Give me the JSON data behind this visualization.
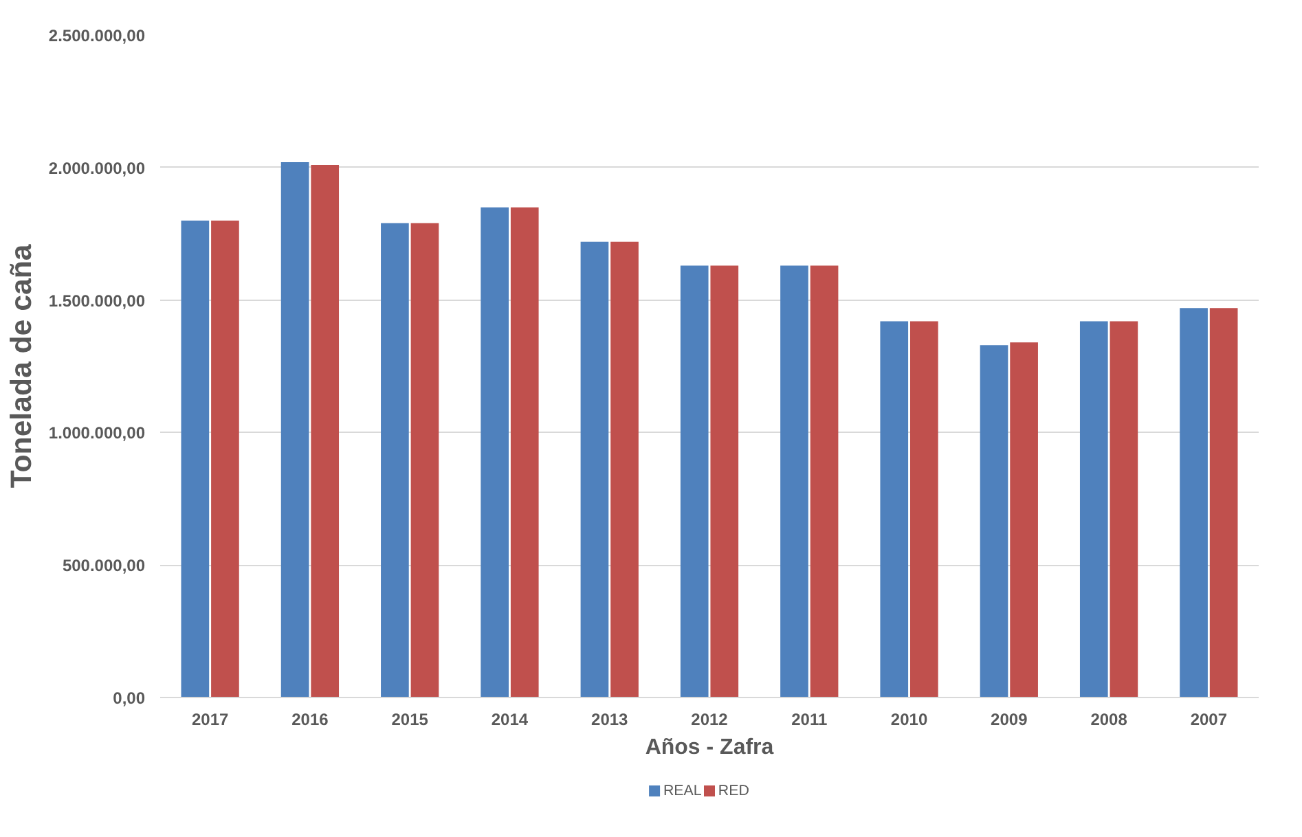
{
  "chart_data": {
    "type": "bar",
    "xlabel": "Años - Zafra",
    "ylabel": "Tonelada de caña",
    "categories": [
      "2017",
      "2016",
      "2015",
      "2014",
      "2013",
      "2012",
      "2011",
      "2010",
      "2009",
      "2008",
      "2007"
    ],
    "series": [
      {
        "name": "REAL",
        "color": "#4f81bd",
        "values": [
          1800000,
          2020000,
          1790000,
          1850000,
          1720000,
          1630000,
          1630000,
          1420000,
          1330000,
          1420000,
          1470000
        ]
      },
      {
        "name": "RED",
        "color": "#c0504d",
        "values": [
          1800000,
          2010000,
          1790000,
          1850000,
          1720000,
          1630000,
          1630000,
          1420000,
          1340000,
          1420000,
          1470000
        ]
      }
    ],
    "ylim": [
      0,
      2500000
    ],
    "yticks": [
      {
        "value": 0,
        "label": "0,00"
      },
      {
        "value": 500000,
        "label": "500.000,00"
      },
      {
        "value": 1000000,
        "label": "1.000.000,00"
      },
      {
        "value": 1500000,
        "label": "1.500.000,00"
      },
      {
        "value": 2000000,
        "label": "2.000.000,00"
      },
      {
        "value": 2500000,
        "label": "2.500.000,00"
      }
    ],
    "grid": "y",
    "legend": "bottom"
  }
}
